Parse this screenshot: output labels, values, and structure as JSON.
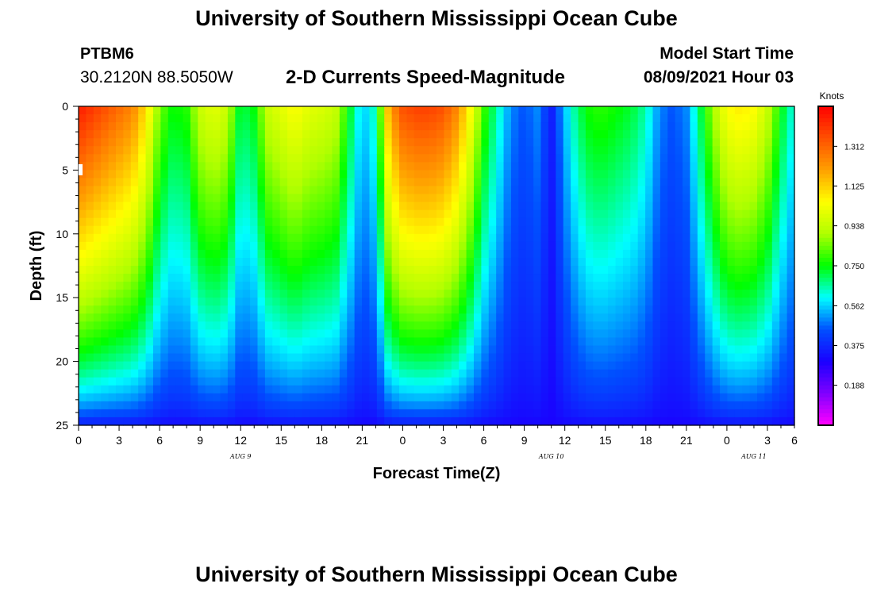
{
  "header": {
    "title": "University of Southern Mississippi Ocean Cube",
    "station": "PTBM6",
    "coords": "30.2120N  88.5050W",
    "subtitle": "2-D Currents Speed-Magnitude",
    "model_start_label": "Model Start Time",
    "model_start_value": "08/09/2021 Hour 03"
  },
  "footer": {
    "title": "University of Southern Mississippi Ocean Cube"
  },
  "chart_data": {
    "type": "heatmap",
    "title": "2-D Currents Speed-Magnitude",
    "xlabel": "Forecast Time(Z)",
    "ylabel": "Depth (ft)",
    "x_hours": [
      0,
      53
    ],
    "y_depth_ft": [
      0,
      25
    ],
    "y_ticks": [
      0,
      5,
      10,
      15,
      20,
      25
    ],
    "x_tick_labels": [
      "0",
      "3",
      "6",
      "9",
      "12",
      "15",
      "18",
      "21",
      "0",
      "3",
      "6",
      "9",
      "12",
      "15",
      "18",
      "21",
      "0",
      "3",
      "6"
    ],
    "day_labels": [
      {
        "hour": 12,
        "label": "AUG 9"
      },
      {
        "hour": 35,
        "label": "AUG 10"
      },
      {
        "hour": 50,
        "label": "AUG 11"
      }
    ],
    "colorbar": {
      "unit": "Knots",
      "range": [
        0.0,
        1.5
      ],
      "ticks": [
        "1.312",
        "1.125",
        "0.938",
        "0.750",
        "0.562",
        "0.375",
        "0.188"
      ],
      "colors": [
        "#ff00ff",
        "#7f00ff",
        "#1a00ff",
        "#0050ff",
        "#00ffff",
        "#00ff00",
        "#b0ff00",
        "#ffff00",
        "#ffa000",
        "#ff5000",
        "#ff0000"
      ]
    },
    "hourly_max_speed_knots": [
      1.45,
      1.4,
      1.35,
      1.3,
      1.25,
      1.1,
      0.85,
      0.75,
      0.78,
      0.95,
      1.0,
      0.95,
      0.7,
      0.75,
      0.95,
      1.0,
      1.05,
      1.0,
      0.98,
      0.95,
      0.75,
      0.55,
      0.65,
      1.2,
      1.35,
      1.38,
      1.38,
      1.35,
      1.25,
      1.05,
      0.8,
      0.65,
      0.5,
      0.45,
      0.5,
      0.35,
      0.55,
      0.7,
      0.78,
      0.78,
      0.75,
      0.72,
      0.65,
      0.5,
      0.45,
      0.5,
      0.7,
      0.9,
      1.05,
      1.08,
      1.05,
      0.95,
      0.75,
      0.6
    ],
    "grid": false
  }
}
